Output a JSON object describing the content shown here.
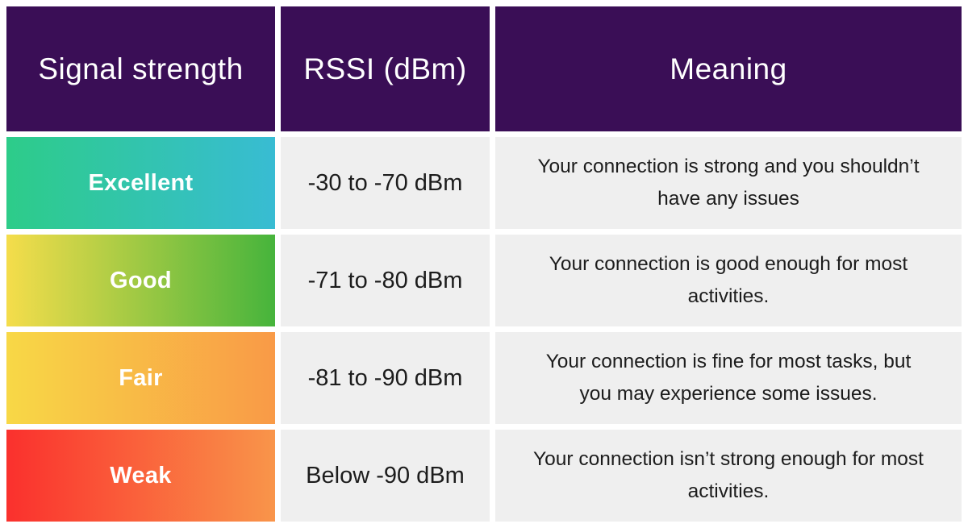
{
  "colors": {
    "header_bg": "#3a0e56",
    "cell_bg": "#efefef",
    "page_bg": "#ffffff",
    "body_text": "#1c1c1c",
    "header_text": "#ffffff"
  },
  "table": {
    "headers": [
      {
        "label": "Signal strength"
      },
      {
        "label": "RSSI (dBm)"
      },
      {
        "label": "Meaning"
      }
    ],
    "rows": [
      {
        "strength": "Excellent",
        "rssi": "-30 to -70 dBm",
        "meaning": "Your connection is strong and you shouldn’t have any issues",
        "gradient_from": "#2dcc89",
        "gradient_to": "#38bcd3"
      },
      {
        "strength": "Good",
        "rssi": "-71 to -80 dBm",
        "meaning": "Your connection is good enough for most activities.",
        "gradient_from": "#f5dd4b",
        "gradient_to": "#46b43c"
      },
      {
        "strength": "Fair",
        "rssi": "-81 to -90 dBm",
        "meaning": "Your connection is fine for most tasks, but you may experience some issues.",
        "gradient_from": "#f8d846",
        "gradient_to": "#f99a47"
      },
      {
        "strength": "Weak",
        "rssi": "Below -90 dBm",
        "meaning": "Your connection isn’t strong enough for most activities.",
        "gradient_from": "#fa302d",
        "gradient_to": "#f9954a"
      }
    ]
  }
}
